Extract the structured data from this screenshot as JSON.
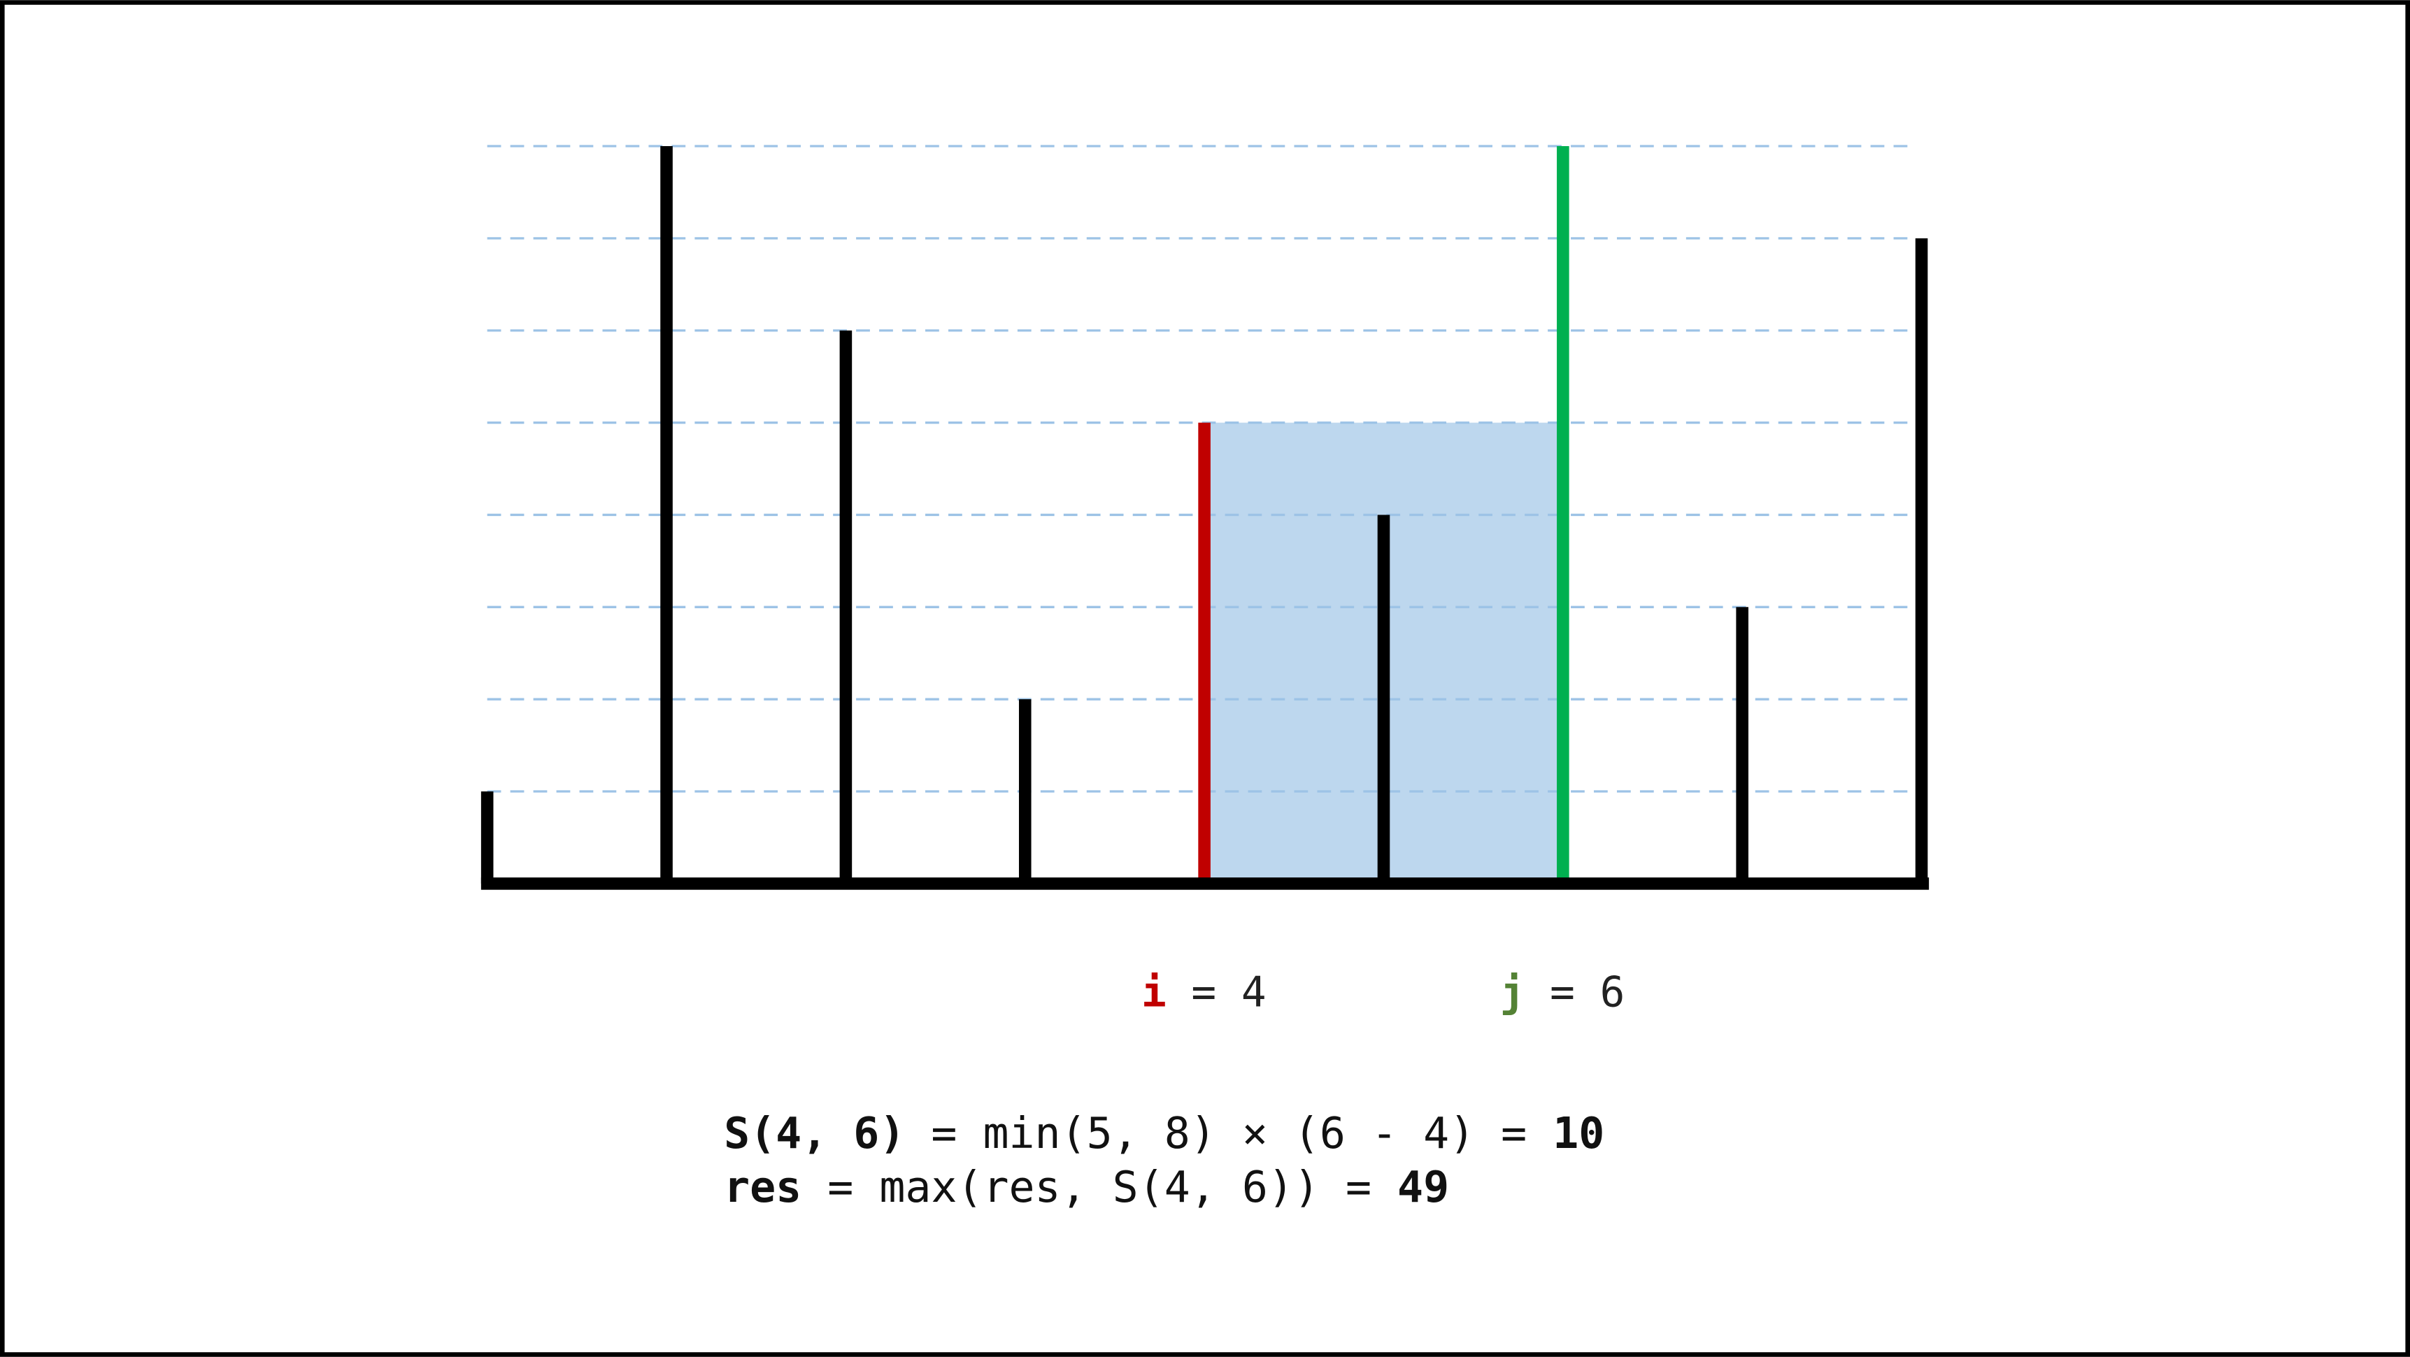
{
  "heights": [
    1,
    8,
    6,
    2,
    5,
    4,
    8,
    3,
    7
  ],
  "ylim": [
    0,
    8
  ],
  "yticks": [
    1,
    2,
    3,
    4,
    5,
    6,
    7,
    8
  ],
  "bar_color": "#000000",
  "area_color": "#bdd7ee",
  "grid_color": "#9dc3e6",
  "pointers": [
    {
      "name": "i",
      "separator": " = ",
      "value": 4,
      "color": "#c00000",
      "label_color": "#c00000"
    },
    {
      "name": "j",
      "separator": " = ",
      "value": 6,
      "color": "#00b050",
      "label_color": "#548235"
    }
  ],
  "formula": [
    [
      {
        "text": "S(4, 6)",
        "bold": true
      },
      {
        "text": " = min(5, 8) × (6 - 4) = ",
        "bold": false
      },
      {
        "text": "10",
        "bold": true
      }
    ],
    [
      {
        "text": "res",
        "bold": true
      },
      {
        "text": " = max(res, S(4, 6)) = ",
        "bold": false
      },
      {
        "text": "49",
        "bold": true
      }
    ]
  ]
}
